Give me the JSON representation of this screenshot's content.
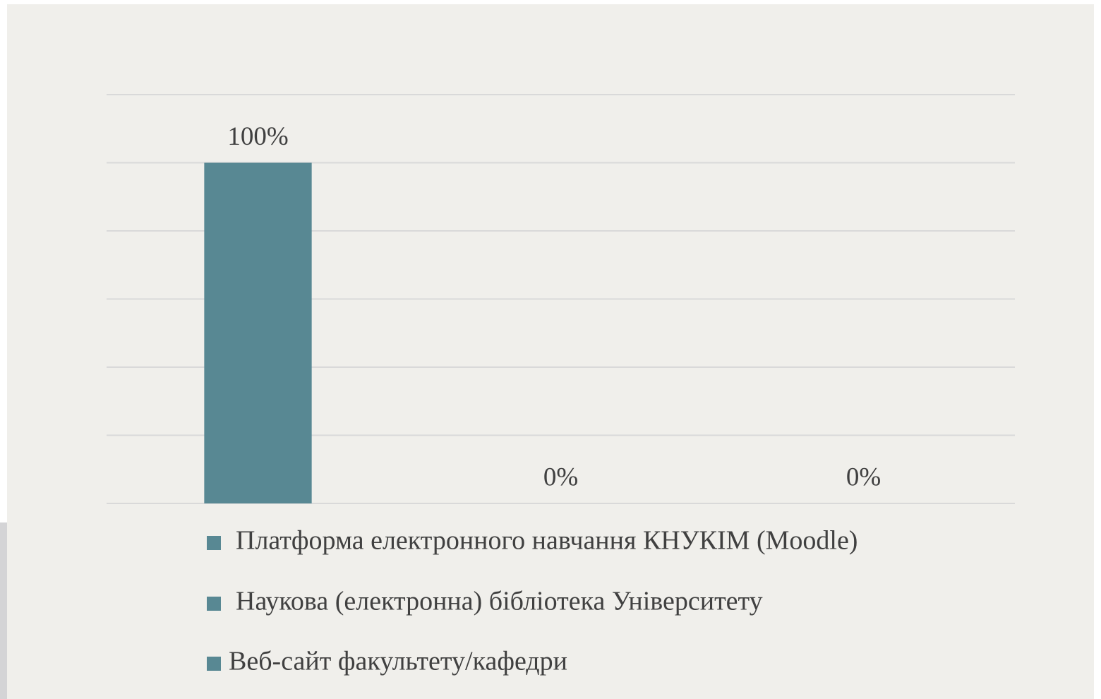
{
  "chart_data": {
    "type": "bar",
    "categories": [
      null
    ],
    "series": [
      {
        "name": "Платформа електронного навчання КНУКІМ (Moodle)",
        "color": "#588893",
        "values": [
          100
        ],
        "value_labels": [
          "100%"
        ]
      },
      {
        "name": "Наукова (електронна) бібліотека Університету",
        "color": "#588893",
        "values": [
          0
        ],
        "value_labels": [
          "0%"
        ]
      },
      {
        "name": "Веб-сайт факультету/кафедри",
        "color": "#588893",
        "values": [
          0
        ],
        "value_labels": [
          "0%"
        ]
      }
    ],
    "ylim": [
      0,
      120
    ],
    "yticks": [
      0,
      20,
      40,
      60,
      80,
      100,
      120
    ],
    "grid": true,
    "legend": "bottom"
  }
}
